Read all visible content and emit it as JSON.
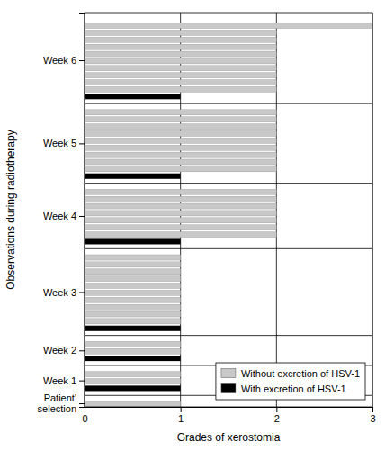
{
  "chart_data": {
    "type": "bar",
    "orientation": "horizontal",
    "xlabel": "Grades of xerostomia",
    "ylabel": "Observations during radiotherapy",
    "categories": [
      "Patient'\nselection",
      "Week 1",
      "Week 2",
      "Week 3",
      "Week 4",
      "Week 5",
      "Week 6"
    ],
    "series": [
      {
        "name": "Without excretion of HSV-1",
        "color": "#c8c8c8",
        "values": [
          [
            1
          ],
          [
            1,
            1
          ],
          [
            1,
            1
          ],
          [
            1,
            1,
            1,
            1,
            1,
            1,
            1,
            1,
            1,
            1
          ],
          [
            2,
            2,
            2,
            2,
            2,
            2,
            2
          ],
          [
            2,
            2,
            2,
            2,
            2,
            2,
            2,
            2,
            2
          ],
          [
            2,
            2,
            2,
            2,
            2,
            2,
            2,
            2,
            2,
            3
          ]
        ]
      },
      {
        "name": "With excretion of HSV-1",
        "color": "#000000",
        "values": [
          [],
          [
            1
          ],
          [
            1
          ],
          [
            1
          ],
          [
            1
          ],
          [
            1
          ],
          [
            1
          ]
        ]
      }
    ],
    "xlim": [
      0,
      3
    ],
    "xticks": [
      0,
      1,
      2,
      3
    ],
    "grid": true,
    "legend": "lower right"
  }
}
